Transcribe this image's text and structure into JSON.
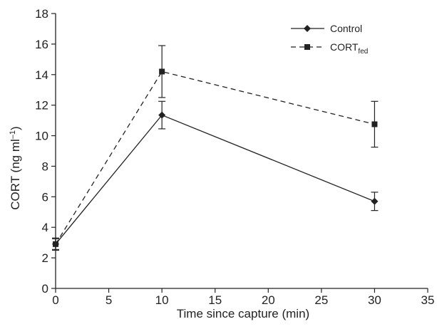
{
  "chart_data": {
    "type": "line",
    "xlabel": "Time since capture (min)",
    "ylabel": {
      "main": "CORT (ng ml",
      "sup": "–1",
      "tail": ")"
    },
    "xlim": [
      0,
      35
    ],
    "ylim": [
      0,
      18
    ],
    "x_ticks": [
      0,
      5,
      10,
      15,
      20,
      25,
      30,
      35
    ],
    "y_ticks": [
      0,
      2,
      4,
      6,
      8,
      10,
      12,
      14,
      16,
      18
    ],
    "grid": false,
    "legend_position": "top-right",
    "series": [
      {
        "name": "Control",
        "name_sub": "",
        "marker": "diamond",
        "line_style": "solid",
        "color": "#222222",
        "x": [
          0,
          10,
          30
        ],
        "y": [
          2.9,
          11.35,
          5.7
        ],
        "error": [
          0.35,
          0.9,
          0.6
        ]
      },
      {
        "name": "CORT",
        "name_sub": "fed",
        "marker": "square",
        "line_style": "dashed",
        "color": "#222222",
        "x": [
          0,
          10,
          30
        ],
        "y": [
          2.9,
          14.2,
          10.75
        ],
        "error": [
          0.4,
          1.7,
          1.5
        ]
      }
    ]
  }
}
